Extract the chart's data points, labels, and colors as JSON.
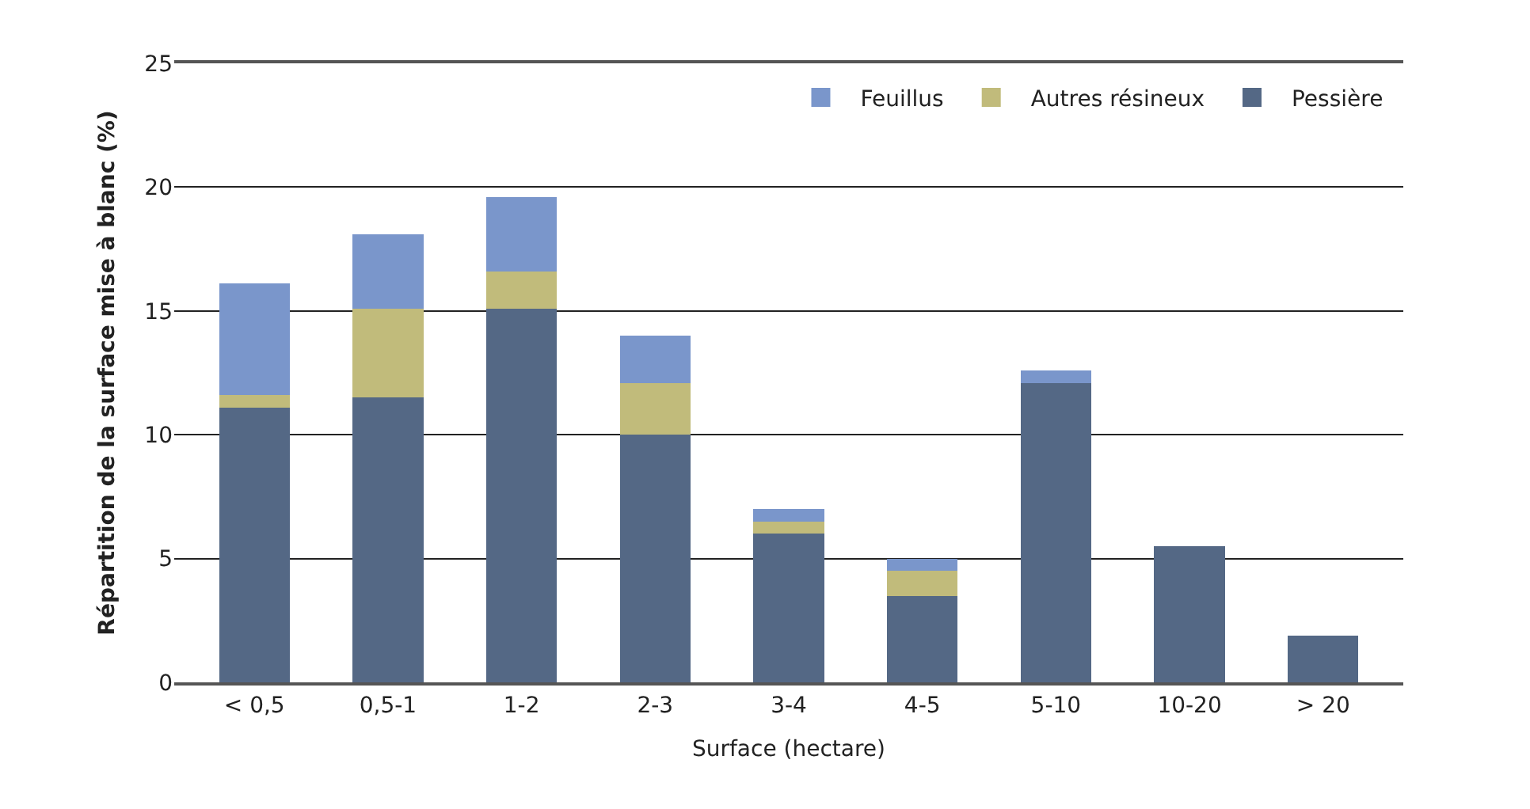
{
  "chart_data": {
    "type": "bar",
    "stacked": true,
    "xlabel": "Surface (hectare)",
    "ylabel": "Répartition de la surface mise à blanc (%)",
    "categories": [
      "< 0,5",
      "0,5-1",
      "1-2",
      "2-3",
      "3-4",
      "4-5",
      "5-10",
      "10-20",
      "> 20"
    ],
    "series": [
      {
        "name": "Pessière",
        "color": "#546885",
        "values": [
          11.1,
          11.5,
          15.1,
          10.0,
          6.0,
          3.5,
          12.1,
          5.5,
          1.9
        ]
      },
      {
        "name": "Autres résineux",
        "color": "#c1bb7b",
        "values": [
          0.5,
          3.6,
          1.5,
          2.1,
          0.5,
          1.0,
          null,
          null,
          null
        ]
      },
      {
        "name": "Feuillus",
        "color": "#7a96cb",
        "values": [
          4.5,
          3.0,
          3.0,
          1.9,
          0.5,
          0.5,
          0.5,
          null,
          null
        ]
      }
    ],
    "ylim": [
      0,
      25
    ],
    "yticks": [
      0,
      5,
      10,
      15,
      20,
      25
    ],
    "grid": "y",
    "legend": "top right"
  }
}
